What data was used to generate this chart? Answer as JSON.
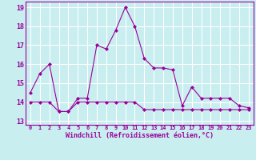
{
  "xlabel": "Windchill (Refroidissement éolien,°C)",
  "bg_color": "#c8eef0",
  "line_color": "#990099",
  "grid_color": "#ffffff",
  "hours": [
    0,
    1,
    2,
    3,
    4,
    5,
    6,
    7,
    8,
    9,
    10,
    11,
    12,
    13,
    14,
    15,
    16,
    17,
    18,
    19,
    20,
    21,
    22,
    23
  ],
  "temp": [
    14.5,
    15.5,
    16.0,
    13.5,
    13.5,
    14.2,
    14.2,
    17.0,
    16.8,
    17.8,
    19.0,
    18.0,
    16.3,
    15.8,
    15.8,
    15.7,
    13.8,
    14.8,
    14.2,
    14.2,
    14.2,
    14.2,
    13.8,
    13.7
  ],
  "windchill": [
    14.0,
    14.0,
    14.0,
    13.5,
    13.5,
    14.0,
    14.0,
    14.0,
    14.0,
    14.0,
    14.0,
    14.0,
    13.6,
    13.6,
    13.6,
    13.6,
    13.6,
    13.6,
    13.6,
    13.6,
    13.6,
    13.6,
    13.6,
    13.6
  ],
  "ylim": [
    12.8,
    19.3
  ],
  "yticks": [
    13,
    14,
    15,
    16,
    17,
    18,
    19
  ],
  "xlim": [
    -0.5,
    23.5
  ]
}
